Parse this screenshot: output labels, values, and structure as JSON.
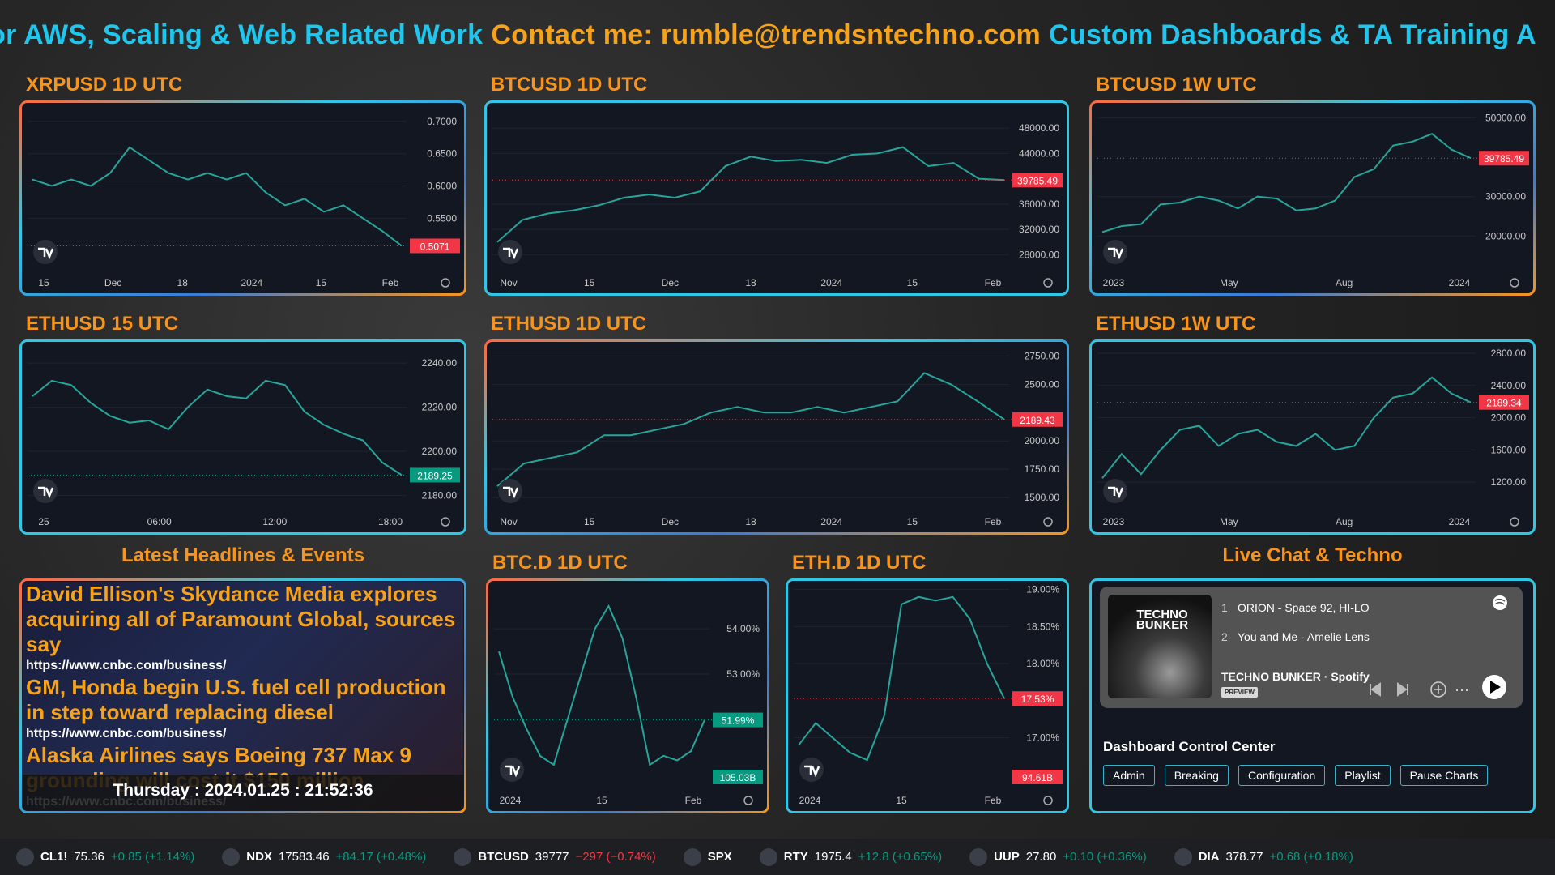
{
  "banner": [
    {
      "text": "or AWS, Scaling & Web Related Work",
      "color": "#1fc6ee"
    },
    {
      "text": "Contact me: rumble@trendsntechno.com",
      "color": "#f7a21b"
    },
    {
      "text": "Custom Dashboards & TA Training A",
      "color": "#1fc6ee"
    }
  ],
  "chart_data": [
    {
      "type": "line",
      "title": "XRPUSD 1D UTC",
      "color": "#26a69a",
      "x_labels": [
        "15",
        "Dec",
        "18",
        "2024",
        "15",
        "Feb"
      ],
      "values": [
        0.61,
        0.6,
        0.61,
        0.6,
        0.62,
        0.66,
        0.64,
        0.62,
        0.61,
        0.62,
        0.61,
        0.62,
        0.59,
        0.57,
        0.58,
        0.56,
        0.57,
        0.55,
        0.53,
        0.5071
      ],
      "ylim": [
        0.47,
        0.72
      ],
      "yticks": [
        {
          "value": 0.7,
          "label": "0.7000"
        },
        {
          "value": 0.65,
          "label": "0.6500"
        },
        {
          "value": 0.6,
          "label": "0.6000"
        },
        {
          "value": 0.55,
          "label": "0.5500"
        }
      ],
      "last_value": 0.5071,
      "last_color": "#f23645"
    },
    {
      "type": "line",
      "title": "BTCUSD 1D UTC",
      "color": "#26a69a",
      "x_labels": [
        "Nov",
        "15",
        "Dec",
        "18",
        "2024",
        "15",
        "Feb"
      ],
      "values": [
        30000,
        33500,
        34500,
        35000,
        35800,
        37000,
        37500,
        37000,
        38000,
        42000,
        43500,
        42800,
        43000,
        42500,
        43800,
        44000,
        45000,
        42000,
        42500,
        40000,
        39785.49
      ],
      "ylim": [
        25600,
        51100
      ],
      "yticks": [
        {
          "value": 48000,
          "label": "48000.00"
        },
        {
          "value": 44000,
          "label": "44000.00"
        },
        {
          "value": 36000,
          "label": "36000.00"
        },
        {
          "value": 32000,
          "label": "32000.00"
        },
        {
          "value": 28000,
          "label": "28000.00"
        }
      ],
      "last_value": 39785.49,
      "last_color": "#f23645"
    },
    {
      "type": "line",
      "title": "BTCUSD 1W UTC",
      "color": "#26a69a",
      "x_labels": [
        "2023",
        "May",
        "Aug",
        "2024"
      ],
      "values": [
        21000,
        22500,
        23000,
        28000,
        28500,
        30000,
        29000,
        27000,
        30000,
        29500,
        26500,
        27000,
        29000,
        35000,
        37000,
        43000,
        44000,
        46000,
        42000,
        39785.49
      ],
      "ylim": [
        11400,
        52400
      ],
      "yticks": [
        {
          "value": 50000,
          "label": "50000.00"
        },
        {
          "value": 30000,
          "label": "30000.00"
        },
        {
          "value": 20000,
          "label": "20000.00"
        }
      ],
      "last_value": 39785.49,
      "last_color": "#f23645"
    },
    {
      "type": "line",
      "title": "ETHUSD 15 UTC",
      "color": "#26a69a",
      "x_labels": [
        "25",
        "06:00",
        "12:00",
        "18:00"
      ],
      "values": [
        2225,
        2232,
        2230,
        2222,
        2216,
        2213,
        2214,
        2210,
        2220,
        2228,
        2225,
        2224,
        2232,
        2230,
        2218,
        2212,
        2208,
        2205,
        2195,
        2189.25
      ],
      "ylim": [
        2174,
        2247
      ],
      "yticks": [
        {
          "value": 2240,
          "label": "2240.00"
        },
        {
          "value": 2220,
          "label": "2220.00"
        },
        {
          "value": 2200,
          "label": "2200.00"
        },
        {
          "value": 2180,
          "label": "2180.00"
        }
      ],
      "last_value": 2189.25,
      "last_color": "#089981"
    },
    {
      "type": "line",
      "title": "ETHUSD 1D UTC",
      "color": "#26a69a",
      "x_labels": [
        "Nov",
        "15",
        "Dec",
        "18",
        "2024",
        "15",
        "Feb"
      ],
      "values": [
        1600,
        1800,
        1850,
        1900,
        2050,
        2050,
        2100,
        2150,
        2250,
        2300,
        2250,
        2250,
        2300,
        2250,
        2300,
        2350,
        2600,
        2500,
        2350,
        2189.43
      ],
      "ylim": [
        1400,
        2825
      ],
      "yticks": [
        {
          "value": 2750,
          "label": "2750.00"
        },
        {
          "value": 2500,
          "label": "2500.00"
        },
        {
          "value": 2000,
          "label": "2000.00"
        },
        {
          "value": 1750,
          "label": "1750.00"
        },
        {
          "value": 1500,
          "label": "1500.00"
        }
      ],
      "last_value": 2189.43,
      "last_color": "#f23645"
    },
    {
      "type": "line",
      "title": "ETHUSD 1W UTC",
      "color": "#26a69a",
      "x_labels": [
        "2023",
        "May",
        "Aug",
        "2024"
      ],
      "values": [
        1250,
        1550,
        1300,
        1600,
        1850,
        1900,
        1650,
        1800,
        1850,
        1700,
        1650,
        1800,
        1600,
        1650,
        2000,
        2250,
        2300,
        2500,
        2300,
        2189.34
      ],
      "ylim": [
        870,
        2870
      ],
      "yticks": [
        {
          "value": 2800,
          "label": "2800.00"
        },
        {
          "value": 2400,
          "label": "2400.00"
        },
        {
          "value": 2000,
          "label": "2000.00"
        },
        {
          "value": 1600,
          "label": "1600.00"
        },
        {
          "value": 1200,
          "label": "1200.00"
        }
      ],
      "last_value": 2189.34,
      "last_color": "#f23645"
    },
    {
      "type": "line",
      "title": "BTC.D 1D UTC",
      "color": "#26a69a",
      "x_labels": [
        "2024",
        "15",
        "Feb"
      ],
      "values": [
        53.5,
        52.5,
        51.8,
        51.2,
        51.0,
        52.0,
        53.0,
        54.0,
        54.5,
        53.8,
        52.5,
        51.0,
        51.2,
        51.1,
        51.3,
        51.99
      ],
      "ylim": [
        50.5,
        54.93
      ],
      "yticks": [
        {
          "value": 54,
          "label": "54.00%"
        },
        {
          "value": 53,
          "label": "53.00%"
        }
      ],
      "last_value": 51.99,
      "last_label": "51.99%",
      "last_color": "#089981",
      "volume_label": "105.03B",
      "volume_color": "#089981"
    },
    {
      "type": "line",
      "title": "ETH.D 1D UTC",
      "color": "#26a69a",
      "x_labels": [
        "2024",
        "15",
        "Feb"
      ],
      "values": [
        16.9,
        17.2,
        17.0,
        16.8,
        16.7,
        17.3,
        18.8,
        18.9,
        18.85,
        18.9,
        18.6,
        18.0,
        17.53
      ],
      "ylim": [
        16.33,
        19.04
      ],
      "yticks": [
        {
          "value": 19,
          "label": "19.00%"
        },
        {
          "value": 18.5,
          "label": "18.50%"
        },
        {
          "value": 18,
          "label": "18.00%"
        },
        {
          "value": 17,
          "label": "17.00%"
        }
      ],
      "last_value": 17.53,
      "last_label": "17.53%",
      "last_color": "#f23645",
      "volume_label": "94.61B",
      "volume_color": "#f23645"
    }
  ],
  "headlines": {
    "title": "Latest Headlines & Events",
    "items": [
      {
        "title": "David Ellison's Skydance Media explores acquiring all of Paramount Global, sources say",
        "url": "https://www.cnbc.com/business/"
      },
      {
        "title": "GM, Honda begin U.S. fuel cell production in step toward replacing diesel",
        "url": "https://www.cnbc.com/business/"
      },
      {
        "title": "Alaska Airlines says Boeing 737 Max 9 grounding will cost it $150 million",
        "url": "https://www.cnbc.com/business/"
      }
    ],
    "date": "Thursday : 2024.01.25 : 21:52:36"
  },
  "chat": {
    "title": "Live Chat & Techno",
    "player": {
      "art_text": "TECHNO BUNKER",
      "tracks": [
        {
          "number": "1",
          "name": "ORION - Space 92, HI-LO"
        },
        {
          "number": "2",
          "name": "You and Me - Amelie Lens"
        }
      ],
      "playlist": "TECHNO BUNKER · Spotify",
      "badge": "PREVIEW"
    },
    "control_center": {
      "title": "Dashboard Control Center",
      "buttons": [
        "Admin",
        "Breaking",
        "Configuration",
        "Playlist",
        "Pause Charts"
      ]
    }
  },
  "ticker": [
    {
      "symbol": "CL1!",
      "price": "75.36",
      "change": "+0.85 (+1.14%)"
    },
    {
      "symbol": "NDX",
      "price": "17583.46",
      "change": "+84.17 (+0.48%)"
    },
    {
      "symbol": "BTCUSD",
      "price": "39777",
      "change": "−297 (−0.74%)"
    },
    {
      "symbol": "SPX"
    },
    {
      "symbol": "RTY",
      "price": "1975.4",
      "change": "+12.8 (+0.65%)"
    },
    {
      "symbol": "UUP",
      "price": "27.80",
      "change": "+0.10 (+0.36%)"
    },
    {
      "symbol": "DIA",
      "price": "378.77",
      "change": "+0.68 (+0.18%)"
    }
  ]
}
